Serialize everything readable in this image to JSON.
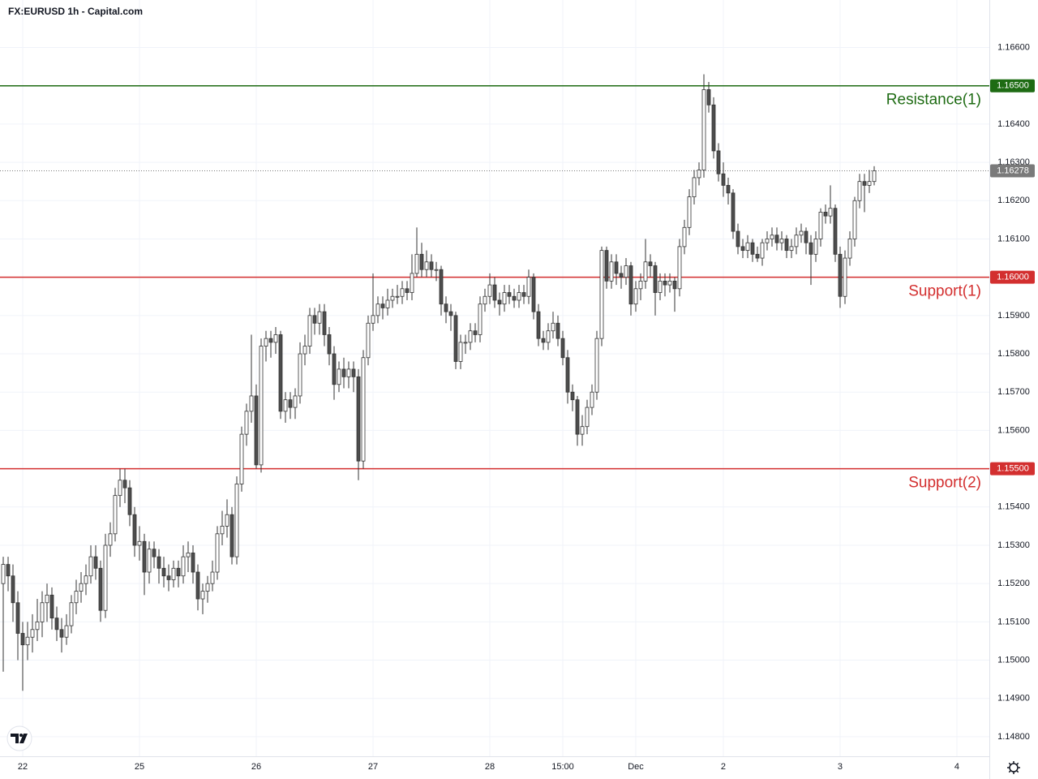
{
  "chart_data": {
    "type": "candlestick",
    "title": "FX:EURUSD 1h - Capital.com",
    "up_color": "#ffffff",
    "down_color": "#4d4d4d",
    "wick_color": "#333333",
    "grid": true,
    "xlim": [
      -0.667,
      202.667
    ],
    "ylim": [
      1.14749,
      1.16724
    ],
    "xticks": [
      {
        "value": 4,
        "label": "22"
      },
      {
        "value": 28,
        "label": "25"
      },
      {
        "value": 52,
        "label": "26"
      },
      {
        "value": 76,
        "label": "27"
      },
      {
        "value": 100,
        "label": "28"
      },
      {
        "value": 115,
        "label": "15:00"
      },
      {
        "value": 130,
        "label": "Dec"
      },
      {
        "value": 148,
        "label": "2"
      },
      {
        "value": 172,
        "label": "3"
      },
      {
        "value": 196,
        "label": "4"
      }
    ],
    "yticks": [
      {
        "value": 1.148,
        "label": "1.14800"
      },
      {
        "value": 1.149,
        "label": "1.14900"
      },
      {
        "value": 1.15,
        "label": "1.15000"
      },
      {
        "value": 1.151,
        "label": "1.15100"
      },
      {
        "value": 1.152,
        "label": "1.15200"
      },
      {
        "value": 1.153,
        "label": "1.15300"
      },
      {
        "value": 1.154,
        "label": "1.15400"
      },
      {
        "value": 1.155,
        "label": "1.15500"
      },
      {
        "value": 1.156,
        "label": "1.15600"
      },
      {
        "value": 1.157,
        "label": "1.15700"
      },
      {
        "value": 1.158,
        "label": "1.15800"
      },
      {
        "value": 1.159,
        "label": "1.15900"
      },
      {
        "value": 1.16,
        "label": "1.16000"
      },
      {
        "value": 1.161,
        "label": "1.16100"
      },
      {
        "value": 1.162,
        "label": "1.16200"
      },
      {
        "value": 1.163,
        "label": "1.16300"
      },
      {
        "value": 1.164,
        "label": "1.16400"
      },
      {
        "value": 1.165,
        "label": "1.16500"
      },
      {
        "value": 1.166,
        "label": "1.16600"
      }
    ],
    "levels": [
      {
        "name": "Resistance(1)",
        "value": 1.165,
        "label": "1.16500",
        "color": "#1e6b13"
      },
      {
        "name": "Support(1)",
        "value": 1.16,
        "label": "1.16000",
        "color": "#d32f2f"
      },
      {
        "name": "Support(2)",
        "value": 1.155,
        "label": "1.15500",
        "color": "#d32f2f"
      }
    ],
    "last_price": 1.16278,
    "last_price_color": "#7a7a7a",
    "ohlc": [
      [
        1.152,
        1.1527,
        1.1497,
        1.1525
      ],
      [
        1.1525,
        1.1527,
        1.1518,
        1.1522
      ],
      [
        1.1522,
        1.1525,
        1.151,
        1.1515
      ],
      [
        1.1515,
        1.1518,
        1.15,
        1.1507
      ],
      [
        1.1507,
        1.151,
        1.1492,
        1.1504
      ],
      [
        1.1504,
        1.151,
        1.15,
        1.1506
      ],
      [
        1.1506,
        1.1512,
        1.1502,
        1.1508
      ],
      [
        1.1508,
        1.1516,
        1.1505,
        1.151
      ],
      [
        1.151,
        1.1518,
        1.1506,
        1.1515
      ],
      [
        1.1515,
        1.152,
        1.151,
        1.1517
      ],
      [
        1.1517,
        1.1519,
        1.1508,
        1.1511
      ],
      [
        1.1511,
        1.1514,
        1.1505,
        1.1508
      ],
      [
        1.1508,
        1.1511,
        1.1502,
        1.1506
      ],
      [
        1.1506,
        1.1512,
        1.1504,
        1.1509
      ],
      [
        1.1509,
        1.1517,
        1.1507,
        1.1515
      ],
      [
        1.1515,
        1.1521,
        1.1512,
        1.1518
      ],
      [
        1.1518,
        1.1523,
        1.1515,
        1.152
      ],
      [
        1.152,
        1.1525,
        1.1517,
        1.1522
      ],
      [
        1.1522,
        1.153,
        1.152,
        1.1527
      ],
      [
        1.1527,
        1.153,
        1.1521,
        1.1524
      ],
      [
        1.1524,
        1.1526,
        1.151,
        1.1513
      ],
      [
        1.1513,
        1.1533,
        1.1511,
        1.153
      ],
      [
        1.153,
        1.1536,
        1.1527,
        1.1533
      ],
      [
        1.1533,
        1.1545,
        1.1531,
        1.1543
      ],
      [
        1.1543,
        1.155,
        1.154,
        1.1547
      ],
      [
        1.1547,
        1.155,
        1.1541,
        1.1545
      ],
      [
        1.1545,
        1.1547,
        1.1535,
        1.1538
      ],
      [
        1.1538,
        1.154,
        1.1527,
        1.153
      ],
      [
        1.153,
        1.1535,
        1.1526,
        1.1531
      ],
      [
        1.1531,
        1.1533,
        1.1517,
        1.1523
      ],
      [
        1.1523,
        1.1531,
        1.152,
        1.1529
      ],
      [
        1.1529,
        1.1531,
        1.1524,
        1.1527
      ],
      [
        1.1527,
        1.1529,
        1.152,
        1.1524
      ],
      [
        1.1524,
        1.1527,
        1.1519,
        1.1522
      ],
      [
        1.1522,
        1.1525,
        1.1518,
        1.1521
      ],
      [
        1.1521,
        1.1526,
        1.1519,
        1.1524
      ],
      [
        1.1524,
        1.1526,
        1.1519,
        1.1522
      ],
      [
        1.1522,
        1.153,
        1.152,
        1.1527
      ],
      [
        1.1527,
        1.1531,
        1.1523,
        1.1528
      ],
      [
        1.1528,
        1.153,
        1.152,
        1.1523
      ],
      [
        1.1523,
        1.1525,
        1.1513,
        1.1516
      ],
      [
        1.1516,
        1.152,
        1.1512,
        1.1518
      ],
      [
        1.1518,
        1.1522,
        1.1515,
        1.152
      ],
      [
        1.152,
        1.1526,
        1.1518,
        1.1523
      ],
      [
        1.1523,
        1.1535,
        1.1521,
        1.1533
      ],
      [
        1.1533,
        1.1539,
        1.153,
        1.1535
      ],
      [
        1.1535,
        1.1542,
        1.1532,
        1.1538
      ],
      [
        1.1538,
        1.154,
        1.1525,
        1.1527
      ],
      [
        1.1527,
        1.1548,
        1.1525,
        1.1546
      ],
      [
        1.1546,
        1.1561,
        1.1544,
        1.1559
      ],
      [
        1.1559,
        1.1567,
        1.1556,
        1.1565
      ],
      [
        1.1565,
        1.1585,
        1.1562,
        1.1569
      ],
      [
        1.1569,
        1.1572,
        1.155,
        1.1551
      ],
      [
        1.1551,
        1.1584,
        1.1549,
        1.1582
      ],
      [
        1.1582,
        1.1586,
        1.1578,
        1.1584
      ],
      [
        1.1584,
        1.1586,
        1.1579,
        1.1583
      ],
      [
        1.1583,
        1.1587,
        1.158,
        1.1585
      ],
      [
        1.1585,
        1.1586,
        1.1563,
        1.1565
      ],
      [
        1.1565,
        1.157,
        1.1562,
        1.1568
      ],
      [
        1.1568,
        1.157,
        1.1563,
        1.1566
      ],
      [
        1.1566,
        1.1571,
        1.1563,
        1.1569
      ],
      [
        1.1569,
        1.1583,
        1.1567,
        1.158
      ],
      [
        1.158,
        1.1585,
        1.1577,
        1.1582
      ],
      [
        1.1582,
        1.1592,
        1.158,
        1.159
      ],
      [
        1.159,
        1.1592,
        1.1585,
        1.1588
      ],
      [
        1.1588,
        1.1593,
        1.1585,
        1.1591
      ],
      [
        1.1591,
        1.1593,
        1.1582,
        1.1585
      ],
      [
        1.1585,
        1.1587,
        1.1577,
        1.158
      ],
      [
        1.158,
        1.1582,
        1.1568,
        1.1572
      ],
      [
        1.1572,
        1.1578,
        1.157,
        1.1576
      ],
      [
        1.1576,
        1.1579,
        1.1571,
        1.1574
      ],
      [
        1.1574,
        1.1578,
        1.1571,
        1.1576
      ],
      [
        1.1576,
        1.1578,
        1.157,
        1.1574
      ],
      [
        1.1574,
        1.1576,
        1.1547,
        1.1552
      ],
      [
        1.1552,
        1.1581,
        1.155,
        1.1579
      ],
      [
        1.1579,
        1.159,
        1.1577,
        1.1588
      ],
      [
        1.1588,
        1.1601,
        1.1586,
        1.159
      ],
      [
        1.159,
        1.1595,
        1.1588,
        1.1593
      ],
      [
        1.1593,
        1.1595,
        1.1589,
        1.1592
      ],
      [
        1.1592,
        1.1597,
        1.159,
        1.1594
      ],
      [
        1.1594,
        1.1597,
        1.1592,
        1.1595
      ],
      [
        1.1595,
        1.1598,
        1.1593,
        1.1595
      ],
      [
        1.1595,
        1.1599,
        1.1593,
        1.1597
      ],
      [
        1.1597,
        1.1599,
        1.1594,
        1.1596
      ],
      [
        1.1596,
        1.1606,
        1.1594,
        1.1601
      ],
      [
        1.1601,
        1.1613,
        1.16,
        1.1606
      ],
      [
        1.1606,
        1.1609,
        1.16,
        1.1602
      ],
      [
        1.1602,
        1.1607,
        1.16,
        1.1604
      ],
      [
        1.1604,
        1.1606,
        1.16,
        1.1602
      ],
      [
        1.1602,
        1.1604,
        1.1599,
        1.1602
      ],
      [
        1.1602,
        1.1603,
        1.159,
        1.1593
      ],
      [
        1.1593,
        1.1595,
        1.1588,
        1.1591
      ],
      [
        1.1591,
        1.1593,
        1.1586,
        1.159
      ],
      [
        1.159,
        1.1591,
        1.1576,
        1.1578
      ],
      [
        1.1578,
        1.1585,
        1.1576,
        1.1583
      ],
      [
        1.1583,
        1.1585,
        1.158,
        1.1583
      ],
      [
        1.1583,
        1.1588,
        1.1581,
        1.1586
      ],
      [
        1.1586,
        1.1588,
        1.1583,
        1.1585
      ],
      [
        1.1585,
        1.1595,
        1.1583,
        1.1593
      ],
      [
        1.1593,
        1.1597,
        1.1591,
        1.1595
      ],
      [
        1.1595,
        1.1601,
        1.1593,
        1.1598
      ],
      [
        1.1598,
        1.16,
        1.1592,
        1.1594
      ],
      [
        1.1594,
        1.1596,
        1.159,
        1.1593
      ],
      [
        1.1593,
        1.1598,
        1.1591,
        1.1596
      ],
      [
        1.1596,
        1.1598,
        1.1593,
        1.1595
      ],
      [
        1.1595,
        1.1597,
        1.1592,
        1.1594
      ],
      [
        1.1594,
        1.1598,
        1.1592,
        1.1596
      ],
      [
        1.1596,
        1.1598,
        1.1593,
        1.1595
      ],
      [
        1.1595,
        1.1602,
        1.1593,
        1.16
      ],
      [
        1.16,
        1.1601,
        1.1589,
        1.1591
      ],
      [
        1.1591,
        1.1593,
        1.1582,
        1.1584
      ],
      [
        1.1584,
        1.1586,
        1.1581,
        1.1583
      ],
      [
        1.1583,
        1.1588,
        1.1581,
        1.1586
      ],
      [
        1.1586,
        1.1591,
        1.1584,
        1.1588
      ],
      [
        1.1588,
        1.159,
        1.1582,
        1.1584
      ],
      [
        1.1584,
        1.1586,
        1.1577,
        1.1579
      ],
      [
        1.1579,
        1.1581,
        1.1567,
        1.157
      ],
      [
        1.157,
        1.1572,
        1.1565,
        1.1568
      ],
      [
        1.1568,
        1.1569,
        1.1556,
        1.1559
      ],
      [
        1.1559,
        1.1564,
        1.1556,
        1.1561
      ],
      [
        1.1561,
        1.1568,
        1.1559,
        1.1566
      ],
      [
        1.1566,
        1.1572,
        1.1564,
        1.157
      ],
      [
        1.157,
        1.1586,
        1.1568,
        1.1584
      ],
      [
        1.1584,
        1.1608,
        1.1582,
        1.1607
      ],
      [
        1.1607,
        1.1608,
        1.1597,
        1.1599
      ],
      [
        1.1599,
        1.1606,
        1.1597,
        1.1604
      ],
      [
        1.1604,
        1.1606,
        1.1598,
        1.1601
      ],
      [
        1.1601,
        1.1603,
        1.1597,
        1.16
      ],
      [
        1.16,
        1.1605,
        1.1598,
        1.1603
      ],
      [
        1.1603,
        1.1604,
        1.159,
        1.1593
      ],
      [
        1.1593,
        1.1599,
        1.1591,
        1.1597
      ],
      [
        1.1597,
        1.1601,
        1.1594,
        1.1599
      ],
      [
        1.1599,
        1.161,
        1.1597,
        1.1604
      ],
      [
        1.1604,
        1.1606,
        1.16,
        1.1603
      ],
      [
        1.1603,
        1.1604,
        1.159,
        1.1596
      ],
      [
        1.1596,
        1.1601,
        1.1594,
        1.1599
      ],
      [
        1.1599,
        1.1601,
        1.1595,
        1.1598
      ],
      [
        1.1598,
        1.1601,
        1.1596,
        1.1599
      ],
      [
        1.1599,
        1.16,
        1.1591,
        1.1597
      ],
      [
        1.1597,
        1.161,
        1.1595,
        1.1608
      ],
      [
        1.1608,
        1.1615,
        1.1606,
        1.1613
      ],
      [
        1.1613,
        1.1623,
        1.1611,
        1.1621
      ],
      [
        1.1621,
        1.1628,
        1.1619,
        1.1626
      ],
      [
        1.1626,
        1.163,
        1.1624,
        1.1628
      ],
      [
        1.1628,
        1.1653,
        1.1626,
        1.1649
      ],
      [
        1.1649,
        1.1651,
        1.1643,
        1.1645
      ],
      [
        1.1645,
        1.1647,
        1.1631,
        1.1633
      ],
      [
        1.1633,
        1.1635,
        1.1625,
        1.1627
      ],
      [
        1.1627,
        1.163,
        1.1621,
        1.1624
      ],
      [
        1.1624,
        1.1626,
        1.1619,
        1.1622
      ],
      [
        1.1622,
        1.1623,
        1.161,
        1.1612
      ],
      [
        1.1612,
        1.1614,
        1.1606,
        1.1608
      ],
      [
        1.1608,
        1.161,
        1.1605,
        1.1607
      ],
      [
        1.1607,
        1.1611,
        1.1605,
        1.1609
      ],
      [
        1.1609,
        1.161,
        1.1604,
        1.1606
      ],
      [
        1.1606,
        1.1608,
        1.1604,
        1.1605
      ],
      [
        1.1605,
        1.161,
        1.1603,
        1.1609
      ],
      [
        1.1609,
        1.1612,
        1.1607,
        1.161
      ],
      [
        1.161,
        1.1613,
        1.1608,
        1.1611
      ],
      [
        1.1611,
        1.1613,
        1.1607,
        1.1609
      ],
      [
        1.1609,
        1.1612,
        1.1607,
        1.161
      ],
      [
        1.161,
        1.1611,
        1.1605,
        1.1607
      ],
      [
        1.1607,
        1.161,
        1.1605,
        1.1608
      ],
      [
        1.1608,
        1.1613,
        1.1606,
        1.1611
      ],
      [
        1.1611,
        1.1614,
        1.1609,
        1.1612
      ],
      [
        1.1612,
        1.1613,
        1.1606,
        1.1609
      ],
      [
        1.1609,
        1.1611,
        1.1598,
        1.1606
      ],
      [
        1.1606,
        1.1612,
        1.1604,
        1.161
      ],
      [
        1.161,
        1.1618,
        1.1608,
        1.1617
      ],
      [
        1.1617,
        1.1619,
        1.1614,
        1.1616
      ],
      [
        1.1616,
        1.1624,
        1.1614,
        1.1618
      ],
      [
        1.1618,
        1.1619,
        1.1604,
        1.1606
      ],
      [
        1.1606,
        1.1608,
        1.1592,
        1.1595
      ],
      [
        1.1595,
        1.1607,
        1.1593,
        1.1605
      ],
      [
        1.1605,
        1.1612,
        1.1603,
        1.161
      ],
      [
        1.161,
        1.1621,
        1.1608,
        1.162
      ],
      [
        1.162,
        1.1627,
        1.1618,
        1.1625
      ],
      [
        1.1625,
        1.1627,
        1.1617,
        1.1624
      ],
      [
        1.1624,
        1.1628,
        1.1622,
        1.1625
      ],
      [
        1.1625,
        1.1629,
        1.1624,
        1.16278
      ]
    ]
  }
}
